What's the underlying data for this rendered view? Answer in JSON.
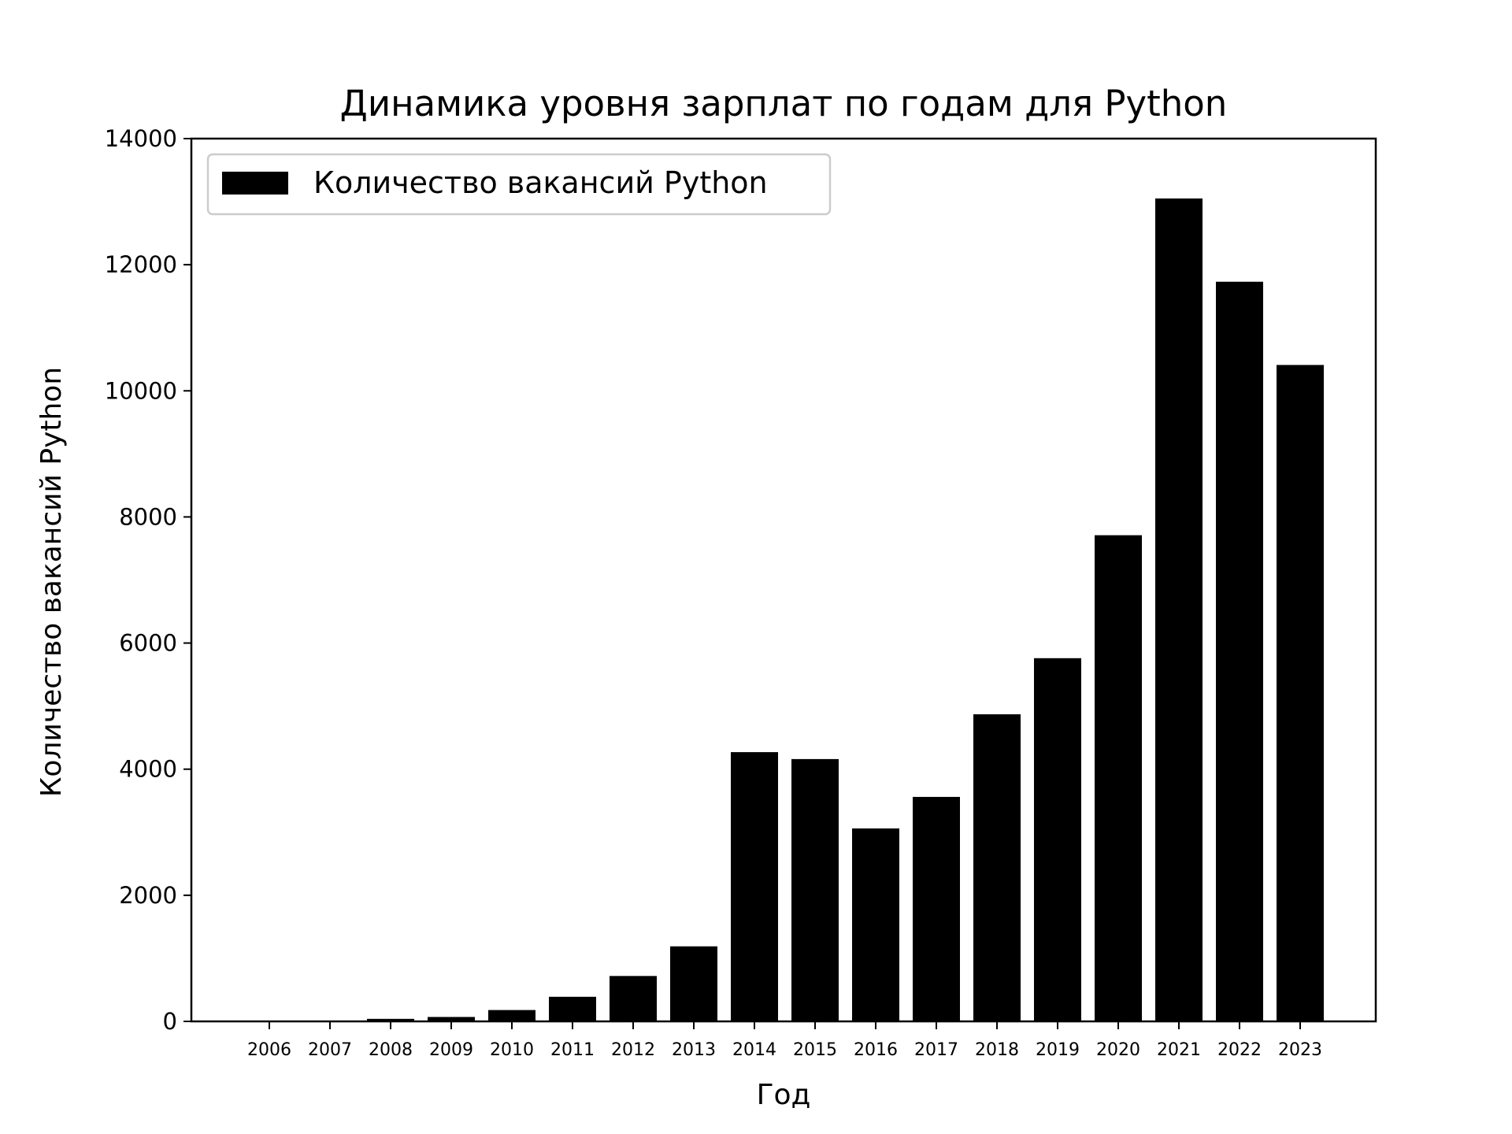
{
  "chart_data": {
    "type": "bar",
    "title": "Динамика уровня зарплат по годам для Python",
    "xlabel": "Год",
    "ylabel": "Количество вакансий Python",
    "categories": [
      "2006",
      "2007",
      "2008",
      "2009",
      "2010",
      "2011",
      "2012",
      "2013",
      "2014",
      "2015",
      "2016",
      "2017",
      "2018",
      "2019",
      "2020",
      "2021",
      "2022",
      "2023"
    ],
    "series": [
      {
        "name": "Количество вакансий Python",
        "values": [
          8,
          12,
          40,
          70,
          180,
          390,
          720,
          1190,
          4270,
          4160,
          3060,
          3560,
          4870,
          5760,
          7710,
          13050,
          11730,
          10410
        ]
      }
    ],
    "ylim": [
      0,
      14000
    ],
    "yticks": [
      "0",
      "2000",
      "4000",
      "6000",
      "8000",
      "10000",
      "12000",
      "14000"
    ],
    "grid": false,
    "legend_position": "top-left",
    "bar_color": "#000000"
  }
}
